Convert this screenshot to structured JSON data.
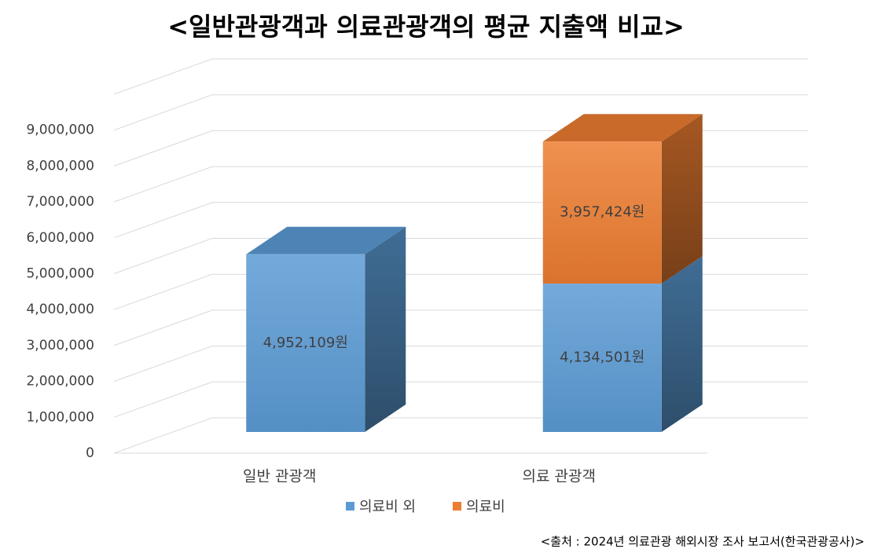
{
  "chart_data": {
    "type": "bar3d-stacked",
    "title": "<일반관광객과 의료관광객의 평균 지출액 비교>",
    "source": "<출처 : 2024년 의료관광 해외시장 조사 보고서(한국관광공사)>",
    "categories": [
      "일반 관광객",
      "의료 관광객"
    ],
    "series": [
      {
        "name": "의료비 외",
        "color": "#5b9bd5",
        "values": [
          4952109,
          4134501
        ],
        "value_labels": [
          "4,952,109원",
          "4,134,501원"
        ]
      },
      {
        "name": "의료비",
        "color": "#ed7d31",
        "values": [
          null,
          3957424
        ],
        "value_labels": [
          null,
          "3,957,424원"
        ]
      }
    ],
    "ylim": [
      0,
      10000000
    ],
    "yticks": [
      0,
      {
        "value": 1000000,
        "label": "1,000,000"
      },
      {
        "value": 2000000,
        "label": "2,000,000"
      },
      {
        "value": 3000000,
        "label": "3,000,000"
      },
      {
        "value": 4000000,
        "label": "4,000,000"
      },
      {
        "value": 5000000,
        "label": "5,000,000"
      },
      {
        "value": 6000000,
        "label": "6,000,000"
      },
      {
        "value": 7000000,
        "label": "7,000,000"
      },
      {
        "value": 8000000,
        "label": "8,000,000"
      },
      {
        "value": 9000000,
        "label": "9,000,000"
      }
    ],
    "grid": true,
    "legend": "bottom"
  }
}
